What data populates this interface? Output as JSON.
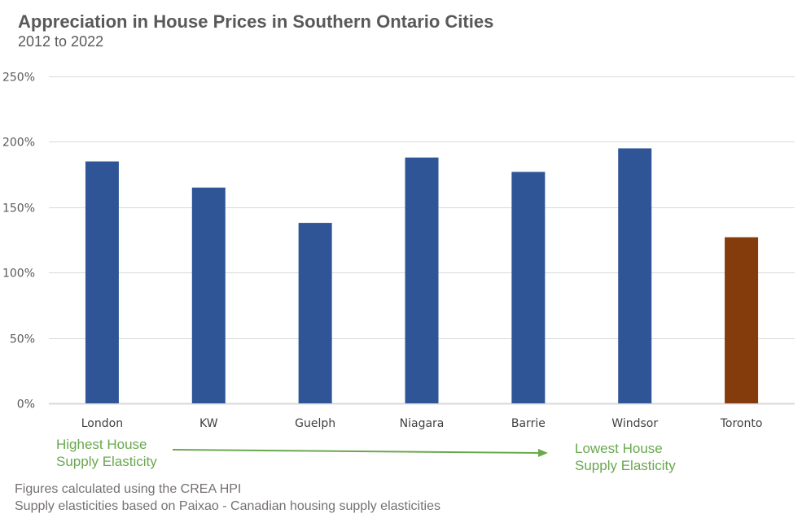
{
  "chart_data": {
    "type": "bar",
    "title": "Appreciation in House Prices in Southern Ontario Cities",
    "subtitle": "2012 to 2022",
    "xlabel": "",
    "ylabel": "",
    "categories": [
      "London",
      "KW",
      "Guelph",
      "Niagara",
      "Barrie",
      "Windsor",
      "Toronto"
    ],
    "values": [
      185,
      165,
      138,
      188,
      177,
      195,
      127
    ],
    "bar_colors": [
      "#2f5597",
      "#2f5597",
      "#2f5597",
      "#2f5597",
      "#2f5597",
      "#2f5597",
      "#843c0c"
    ],
    "ylim": [
      0,
      250
    ],
    "yticks": [
      0,
      50,
      100,
      150,
      200,
      250
    ],
    "ytick_labels": [
      "0%",
      "50%",
      "100%",
      "150%",
      "200%",
      "250%"
    ],
    "grid": true,
    "legend": "none",
    "annotations": {
      "left": [
        "Highest House",
        "Supply Elasticity"
      ],
      "right": [
        "Lowest House",
        "Supply Elasticity"
      ],
      "arrow": "left-to-right",
      "color": "#6aa84f"
    }
  },
  "footer": {
    "line1": "Figures calculated using the CREA HPI",
    "line2": "Supply elasticities based on Paixao - Canadian housing supply elasticities"
  }
}
